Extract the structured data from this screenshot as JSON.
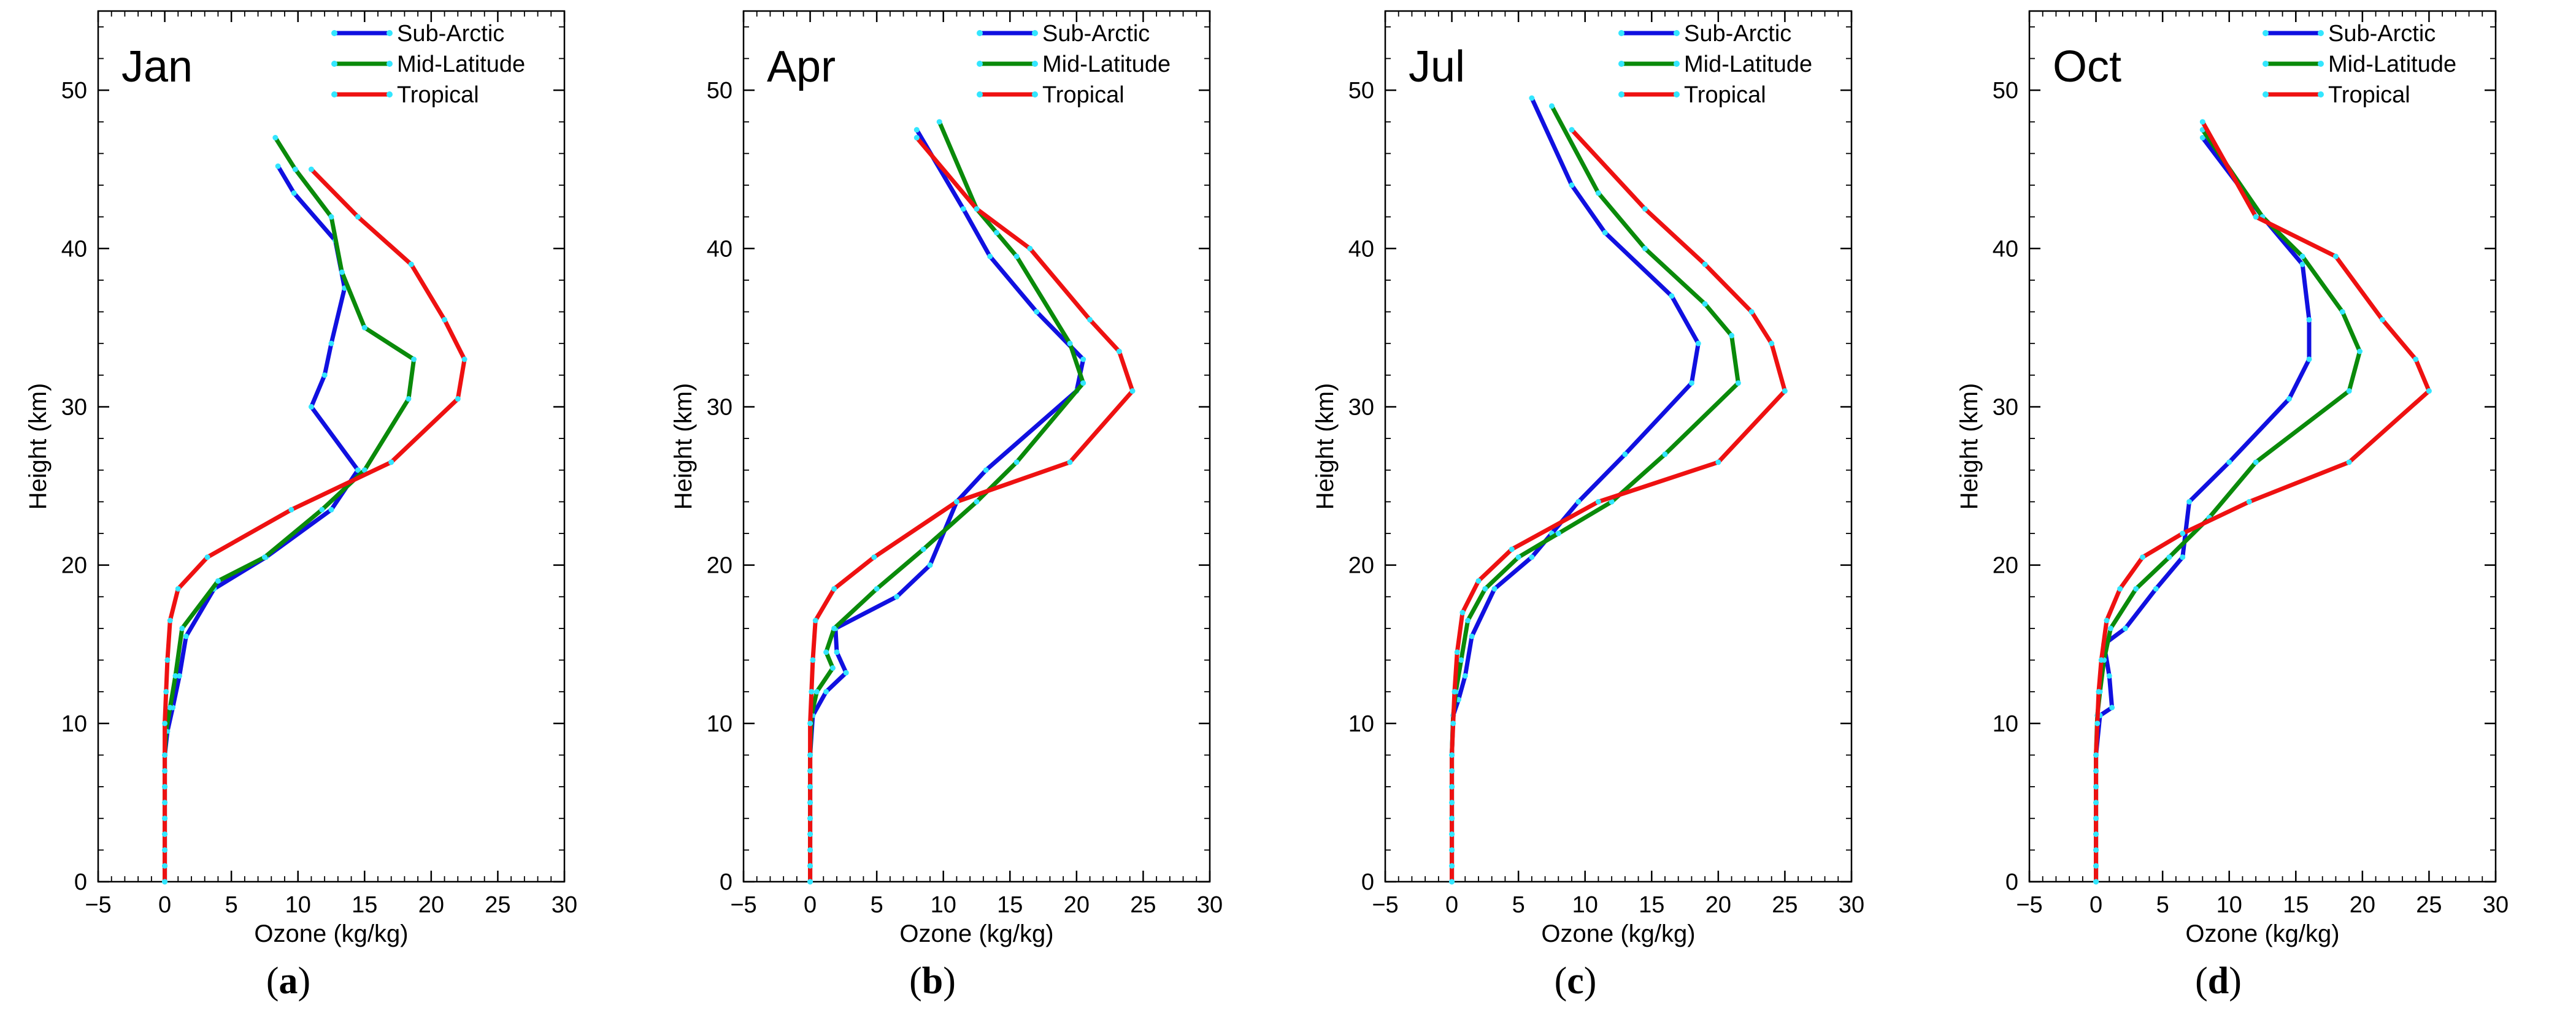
{
  "figure": {
    "captions": [
      "a",
      "b",
      "c",
      "d"
    ]
  },
  "colors": {
    "sub_arctic": "#1010e0",
    "mid_latitude": "#0a8a0a",
    "tropical": "#ee1111",
    "marker": "#33e6ff"
  },
  "chart_data": [
    {
      "type": "line",
      "title": "Jan",
      "xlabel": "Ozone (kg/kg)",
      "ylabel": "Height (km)",
      "xlim": [
        -5,
        30
      ],
      "ylim": [
        0,
        55
      ],
      "xticks": [
        -5,
        0,
        5,
        10,
        15,
        20,
        25,
        30
      ],
      "yticks": [
        0,
        10,
        20,
        30,
        40,
        50
      ],
      "legend": "top-right",
      "series": [
        {
          "name": "Sub-Arctic",
          "x": [
            0,
            0,
            0,
            0,
            0,
            0,
            0,
            0,
            0,
            0.2,
            0.6,
            1.1,
            1.6,
            3.7,
            7.6,
            12.5,
            14.5,
            11,
            12,
            12.5,
            13.5,
            12.8,
            9.7,
            8.5
          ],
          "y": [
            0,
            1,
            2,
            3,
            4,
            5,
            6,
            7,
            8,
            9.5,
            11,
            13,
            15.5,
            18.5,
            20.5,
            23.5,
            26,
            30,
            32,
            34,
            37.5,
            40.5,
            43.5,
            45.2
          ]
        },
        {
          "name": "Mid-Latitude",
          "x": [
            0,
            0,
            0,
            0,
            0,
            0,
            0,
            0,
            0,
            0.1,
            0.4,
            0.8,
            1.3,
            4,
            7.5,
            11.8,
            15,
            18.3,
            18.7,
            15,
            13.3,
            12.5,
            9.8,
            8.3
          ],
          "y": [
            0,
            1,
            2,
            3,
            4,
            5,
            6,
            7,
            8,
            9.5,
            11,
            13,
            16,
            19,
            20.5,
            23.5,
            26,
            30.5,
            33,
            35,
            38.5,
            42,
            45,
            47
          ]
        },
        {
          "name": "Tropical",
          "x": [
            0,
            0,
            0,
            0,
            0,
            0,
            0,
            0,
            0,
            0,
            0.1,
            0.2,
            0.4,
            1,
            3.2,
            9.5,
            17,
            22,
            22.5,
            21,
            18.5,
            14.5,
            11
          ],
          "y": [
            0,
            1,
            2,
            3,
            4,
            5,
            6,
            7,
            8,
            10,
            12,
            14,
            16.5,
            18.5,
            20.5,
            23.5,
            26.5,
            30.5,
            33,
            35.5,
            39,
            42,
            45
          ]
        }
      ]
    },
    {
      "type": "line",
      "title": "Apr",
      "xlabel": "Ozone (kg/kg)",
      "ylabel": "Height (km)",
      "xlim": [
        -5,
        30
      ],
      "ylim": [
        0,
        55
      ],
      "xticks": [
        -5,
        0,
        5,
        10,
        15,
        20,
        25,
        30
      ],
      "yticks": [
        0,
        10,
        20,
        30,
        40,
        50
      ],
      "legend": "top-right",
      "series": [
        {
          "name": "Sub-Arctic",
          "x": [
            0,
            0,
            0,
            0,
            0,
            0,
            0,
            0,
            0,
            0.2,
            1.2,
            2.7,
            2,
            1.9,
            6.5,
            9,
            11,
            13.2,
            20,
            20.5,
            17,
            13.5,
            11.5,
            8
          ],
          "y": [
            0,
            1,
            2,
            3,
            4,
            5,
            6,
            7,
            8,
            10.5,
            12,
            13.2,
            14.5,
            16,
            18,
            20,
            24,
            26,
            31,
            33,
            36,
            39.5,
            42.5,
            47.5
          ]
        },
        {
          "name": "Mid-Latitude",
          "x": [
            0,
            0,
            0,
            0,
            0,
            0,
            0,
            0,
            0,
            0.1,
            0.5,
            1.7,
            1.2,
            1.8,
            5,
            8.5,
            12.5,
            15.5,
            20.5,
            19.5,
            15.5,
            14,
            12.5,
            9.7
          ],
          "y": [
            0,
            1,
            2,
            3,
            4,
            5,
            6,
            7,
            8,
            10.5,
            12,
            13.5,
            14.5,
            16,
            18.5,
            21,
            24,
            26.5,
            31.5,
            34,
            39.5,
            41,
            42.5,
            48
          ]
        },
        {
          "name": "Tropical",
          "x": [
            0,
            0,
            0,
            0,
            0,
            0,
            0,
            0,
            0,
            0,
            0.1,
            0.2,
            0.4,
            1.8,
            4.8,
            11,
            19.5,
            24.2,
            23.2,
            21,
            16.5,
            12.5,
            8
          ],
          "y": [
            0,
            1,
            2,
            3,
            4,
            5,
            6,
            7,
            8,
            10,
            12,
            14,
            16.5,
            18.5,
            20.5,
            24,
            26.5,
            31,
            33.5,
            35.5,
            40,
            42.5,
            47
          ]
        }
      ]
    },
    {
      "type": "line",
      "title": "Jul",
      "xlabel": "Ozone (kg/kg)",
      "ylabel": "Height (km)",
      "xlim": [
        -5,
        30
      ],
      "ylim": [
        0,
        55
      ],
      "xticks": [
        -5,
        0,
        5,
        10,
        15,
        20,
        25,
        30
      ],
      "yticks": [
        0,
        10,
        20,
        30,
        40,
        50
      ],
      "legend": "top-right",
      "series": [
        {
          "name": "Sub-Arctic",
          "x": [
            0,
            0,
            0,
            0,
            0,
            0,
            0,
            0,
            0,
            0.1,
            0.5,
            1,
            1.5,
            3.2,
            6,
            7.5,
            9.5,
            13,
            18,
            18.5,
            16.5,
            11.5,
            9,
            6
          ],
          "y": [
            0,
            1,
            2,
            3,
            4,
            5,
            6,
            7,
            8,
            10.5,
            11.5,
            13,
            15.5,
            18.5,
            20.5,
            22,
            24,
            27,
            31.5,
            34,
            37,
            41,
            44,
            49.5
          ]
        },
        {
          "name": "Mid-Latitude",
          "x": [
            0,
            0,
            0,
            0,
            0,
            0,
            0,
            0,
            0,
            0.1,
            0.3,
            0.7,
            1.2,
            2.5,
            5,
            8,
            12,
            16,
            21.5,
            21,
            19,
            14.5,
            11,
            7.5
          ],
          "y": [
            0,
            1,
            2,
            3,
            4,
            5,
            6,
            7,
            8,
            10.5,
            12,
            14,
            16.5,
            18.5,
            20.5,
            22,
            24,
            27,
            31.5,
            34.5,
            36.5,
            40,
            43.5,
            49
          ]
        },
        {
          "name": "Tropical",
          "x": [
            0,
            0,
            0,
            0,
            0,
            0,
            0,
            0,
            0,
            0.1,
            0.2,
            0.4,
            0.8,
            2,
            4.5,
            11,
            20,
            25,
            24,
            22.5,
            19,
            14.5,
            9
          ],
          "y": [
            0,
            1,
            2,
            3,
            4,
            5,
            6,
            7,
            8,
            10,
            12,
            14.5,
            17,
            19,
            21,
            24,
            26.5,
            31,
            34,
            36,
            39,
            42.5,
            47.5
          ]
        }
      ]
    },
    {
      "type": "line",
      "title": "Oct",
      "xlabel": "Ozone (kg/kg)",
      "ylabel": "Height (km)",
      "xlim": [
        -5,
        30
      ],
      "ylim": [
        0,
        55
      ],
      "xticks": [
        -5,
        0,
        5,
        10,
        15,
        20,
        25,
        30
      ],
      "yticks": [
        0,
        10,
        20,
        30,
        40,
        50
      ],
      "legend": "top-right",
      "series": [
        {
          "name": "Sub-Arctic",
          "x": [
            0,
            0,
            0,
            0,
            0,
            0,
            0,
            0,
            0,
            0.3,
            1.2,
            1,
            0.6,
            2.2,
            4.5,
            6.5,
            7,
            10,
            14.5,
            16,
            16,
            15.5,
            12.5,
            8
          ],
          "y": [
            0,
            1,
            2,
            3,
            4,
            5,
            6,
            7,
            8,
            10.5,
            11,
            13,
            15,
            16,
            18.5,
            20.5,
            24,
            26.5,
            30.5,
            33,
            35.5,
            39,
            42,
            47
          ]
        },
        {
          "name": "Mid-Latitude",
          "x": [
            0,
            0,
            0,
            0,
            0,
            0,
            0,
            0,
            0,
            0.1,
            0.3,
            0.6,
            1.1,
            3,
            5.5,
            8.5,
            12,
            19,
            19.8,
            18.5,
            15.5,
            12.5,
            8
          ],
          "y": [
            0,
            1,
            2,
            3,
            4,
            5,
            6,
            7,
            8,
            10.5,
            12,
            14,
            16,
            18.5,
            20.5,
            23,
            26.5,
            31,
            33.5,
            36,
            39.5,
            42,
            47.5
          ]
        },
        {
          "name": "Tropical",
          "x": [
            0,
            0,
            0,
            0,
            0,
            0,
            0,
            0,
            0,
            0.1,
            0.2,
            0.4,
            0.8,
            1.8,
            3.5,
            6.5,
            11.5,
            19,
            25,
            24,
            21.5,
            18,
            12,
            8
          ],
          "y": [
            0,
            1,
            2,
            3,
            4,
            5,
            6,
            7,
            8,
            10,
            12,
            14,
            16.5,
            18.5,
            20.5,
            22,
            24,
            26.5,
            31,
            33,
            35.5,
            39.5,
            42,
            48
          ]
        }
      ]
    }
  ]
}
